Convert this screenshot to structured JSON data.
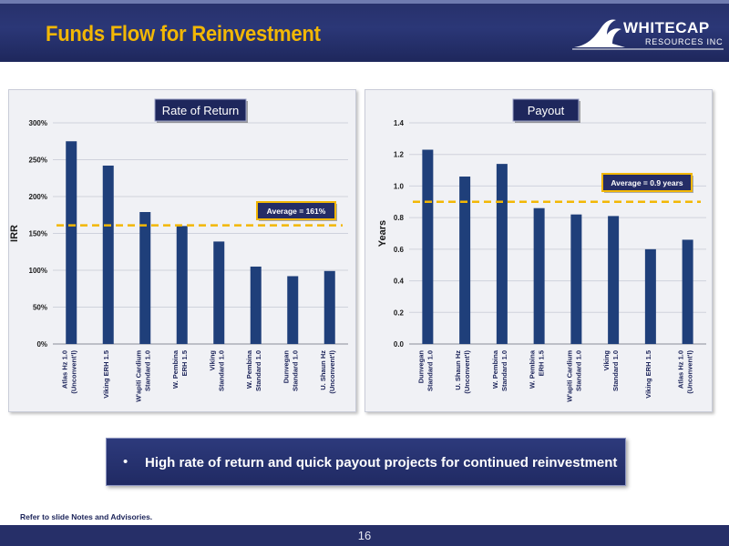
{
  "slide": {
    "title": "Funds Flow for Reinvestment",
    "logo": {
      "name": "WHITECAP",
      "subname": "RESOURCES INC"
    },
    "bullet": "High rate of return and quick payout projects for continued reinvestment",
    "footnote": "Refer to slide Notes and Advisories.",
    "page_number": "16"
  },
  "colors": {
    "bar": "#1f3f7a",
    "average_line": "#f2b705",
    "title": "#f2b705",
    "banner": "#27306a"
  },
  "chart_data": [
    {
      "type": "bar",
      "title": "Rate of Return",
      "ylabel": "IRR",
      "xlabel": "",
      "ylim": [
        0,
        300
      ],
      "ytick_values": [
        0,
        50,
        100,
        150,
        200,
        250,
        300
      ],
      "ytick_labels": [
        "0%",
        "50%",
        "100%",
        "150%",
        "200%",
        "250%",
        "300%"
      ],
      "categories": [
        [
          "Atlas Hz 1.0",
          "(Unconvent'l)"
        ],
        [
          "Viking ERH 1.5"
        ],
        [
          "W'apiti Cardium",
          "Standard 1.0"
        ],
        [
          "W. Pembina",
          "ERH 1.5"
        ],
        [
          "Viking",
          "Standard 1.0"
        ],
        [
          "W. Pembina",
          "Standard 1.0"
        ],
        [
          "Dunvegan",
          "Standard 1.0"
        ],
        [
          "U. Shaun Hz",
          "(Unconvent'l)"
        ]
      ],
      "values": [
        275,
        242,
        179,
        160,
        139,
        105,
        92,
        99
      ],
      "average": {
        "value": 161,
        "label": "Average = 161%"
      },
      "grid": true,
      "legend": "none"
    },
    {
      "type": "bar",
      "title": "Payout",
      "ylabel": "Years",
      "xlabel": "",
      "ylim": [
        0,
        1.4
      ],
      "ytick_values": [
        0,
        0.2,
        0.4,
        0.6,
        0.8,
        1.0,
        1.2,
        1.4
      ],
      "ytick_labels": [
        "0.0",
        "0.2",
        "0.4",
        "0.6",
        "0.8",
        "1.0",
        "1.2",
        "1.4"
      ],
      "categories": [
        [
          "Dunvegan",
          "Standard 1.0"
        ],
        [
          "U. Shaun Hz",
          "(Unconvent'l)"
        ],
        [
          "W. Pembina",
          "Standard 1.0"
        ],
        [
          "W. Pembina",
          "ERH 1.5"
        ],
        [
          "W'apiti Cardium",
          "Standard 1.0"
        ],
        [
          "Viking",
          "Standard 1.0"
        ],
        [
          "Viking ERH 1.5"
        ],
        [
          "Atlas Hz 1.0",
          "(Unconvent'l)"
        ]
      ],
      "values": [
        1.23,
        1.06,
        1.14,
        0.86,
        0.82,
        0.81,
        0.6,
        0.66
      ],
      "average": {
        "value": 0.9,
        "label": "Average = 0.9 years"
      },
      "grid": true,
      "legend": "none"
    }
  ]
}
